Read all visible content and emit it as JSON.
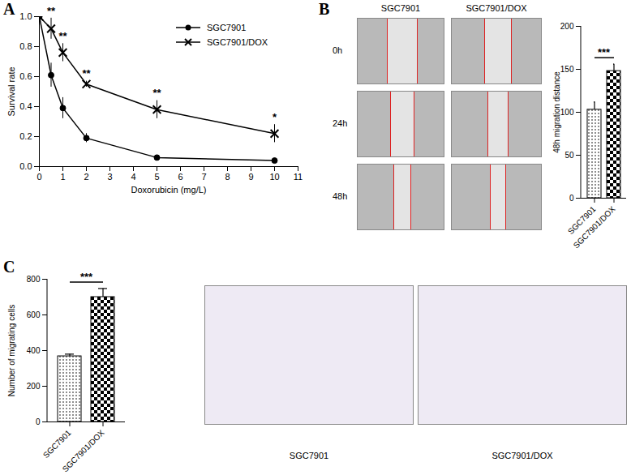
{
  "chart_data": [
    {
      "title": "A",
      "type": "line",
      "x": [
        0,
        0.5,
        1,
        2,
        5,
        10
      ],
      "xlim": [
        0,
        11
      ],
      "xticks": [
        0,
        1,
        2,
        3,
        4,
        5,
        6,
        7,
        8,
        9,
        10,
        11
      ],
      "ylim": [
        0,
        1
      ],
      "yticks": [
        {
          "value": 0,
          "label": "0.0"
        },
        {
          "value": 0.2,
          "label": "0.2"
        },
        {
          "value": 0.4,
          "label": "0.4"
        },
        {
          "value": 0.6,
          "label": "0.6"
        },
        {
          "value": 0.8,
          "label": "0.8"
        },
        {
          "value": 1,
          "label": "1.0"
        }
      ],
      "x_label": "Doxorubicin (mg/L)",
      "y_label": "Survival rate",
      "legend": "upper right",
      "grid": false,
      "series": [
        {
          "name": "SGC7901",
          "color": "#000000",
          "marker": "circle",
          "line_style": "solid",
          "values": [
            1.0,
            0.61,
            0.39,
            0.19,
            0.06,
            0.04
          ],
          "errors": [
            0,
            0.08,
            0.07,
            0.03,
            0.01,
            0.01
          ]
        },
        {
          "name": "SGC7901/DOX",
          "color": "#000000",
          "marker": "x",
          "line_style": "solid",
          "values": [
            1.0,
            0.92,
            0.76,
            0.55,
            0.38,
            0.22
          ],
          "errors": [
            0,
            0.07,
            0.06,
            0.02,
            0.06,
            0.06
          ]
        }
      ],
      "annotations": [
        {
          "x": 0.5,
          "text": "**"
        },
        {
          "x": 1,
          "text": "**"
        },
        {
          "x": 2,
          "text": "**"
        },
        {
          "x": 5,
          "text": "**"
        },
        {
          "x": 10,
          "text": "*"
        }
      ]
    },
    {
      "title": "B",
      "type": "bar",
      "categories": [
        "SGC7901",
        "SGC7901/DOX"
      ],
      "values": [
        103,
        148
      ],
      "errors": [
        9,
        8
      ],
      "ylim": [
        0,
        200
      ],
      "yticks": [
        0,
        50,
        100,
        150,
        200
      ],
      "y_label": "48h migration distance",
      "grid": false,
      "annotations": [
        {
          "text": "***"
        }
      ]
    },
    {
      "title": "C",
      "type": "bar",
      "categories": [
        "SGC7901",
        "SGC7901/DOX"
      ],
      "values": [
        368,
        700
      ],
      "errors": [
        12,
        48
      ],
      "ylim": [
        0,
        800
      ],
      "yticks": [
        0,
        200,
        400,
        600,
        800
      ],
      "y_label": "Number of migrating cells",
      "grid": false,
      "annotations": [
        {
          "text": "***"
        }
      ]
    }
  ],
  "images": {
    "B": {
      "columns": [
        "SGC7901",
        "SGC7901/DOX"
      ],
      "rows": [
        "0h",
        "24h",
        "48h"
      ]
    },
    "C": {
      "captions": [
        "SGC7901",
        "SGC7901/DOX"
      ]
    }
  }
}
